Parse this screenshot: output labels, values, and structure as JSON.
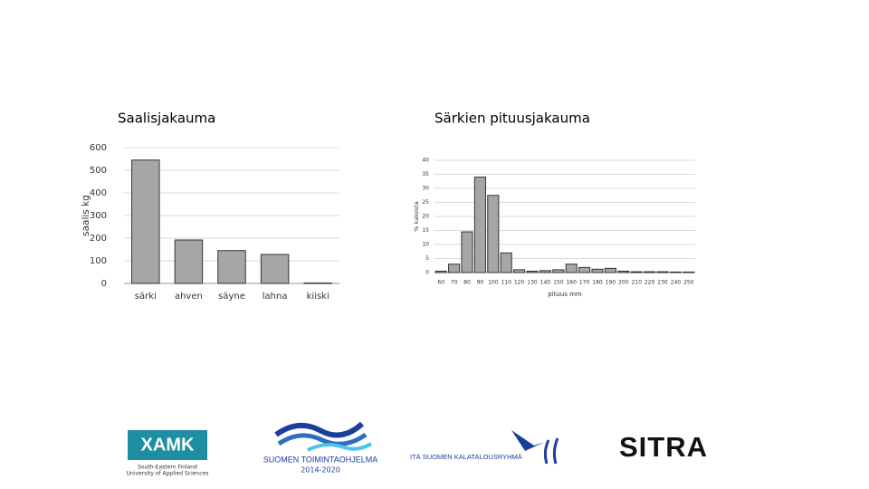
{
  "chart_data": [
    {
      "type": "bar",
      "title": "Saalisjakauma",
      "ylabel": "saalis kg",
      "categories": [
        "särki",
        "ahven",
        "säyne",
        "lahna",
        "kiiski"
      ],
      "values": [
        545,
        192,
        145,
        128,
        2
      ],
      "color": "#a6a6a6",
      "ylim": [
        0,
        600
      ],
      "yticks": [
        0,
        100,
        200,
        300,
        400,
        500,
        600
      ],
      "grid": true
    },
    {
      "type": "bar",
      "title": "Särkien pituusjakauma",
      "ylabel": "% kaloista",
      "xlabel": "pituus mm",
      "categories": [
        "60",
        "70",
        "80",
        "90",
        "100",
        "110",
        "120",
        "130",
        "140",
        "150",
        "160",
        "170",
        "180",
        "190",
        "200",
        "210",
        "220",
        "230",
        "240",
        "250"
      ],
      "values": [
        0.5,
        3,
        14.5,
        34,
        27.5,
        7,
        1,
        0.5,
        0.7,
        1,
        3,
        1.8,
        1.2,
        1.5,
        0.5,
        0.3,
        0.3,
        0.3,
        0.2,
        0.2
      ],
      "color": "#a6a6a6",
      "ylim": [
        0,
        40
      ],
      "yticks": [
        0,
        5,
        10,
        15,
        20,
        25,
        30,
        35,
        40
      ],
      "grid": true
    }
  ],
  "logos": {
    "xamk": "XAMK",
    "xamk_line1": "South-Eastern Finland",
    "xamk_line2": "University of Applied Sciences",
    "program": "SUOMEN TOIMINTAOHJELMA",
    "program_years": "2014-2020",
    "group": "ITÄ SUOMEN KALATALOUSRYHMÄ",
    "sitra": "SITRA"
  }
}
